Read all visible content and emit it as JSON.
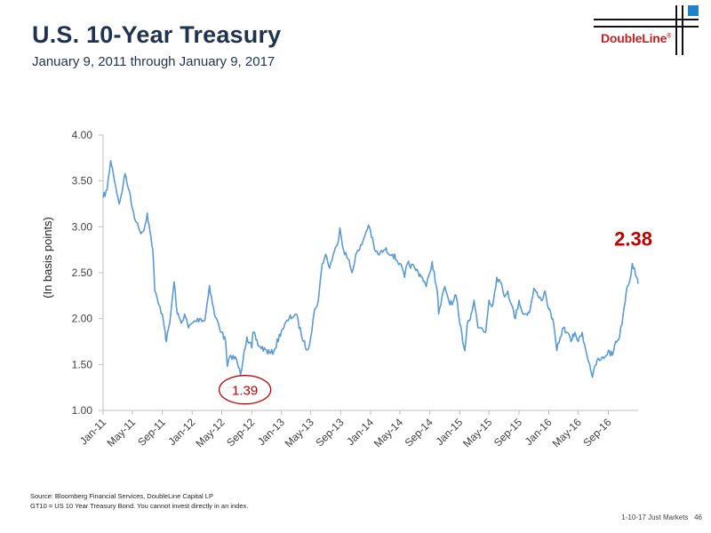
{
  "header": {
    "title": "U.S. 10-Year Treasury",
    "subtitle": "January 9, 2011 through January 9, 2017"
  },
  "logo": {
    "text": "DoubleLine",
    "mark": "®"
  },
  "footer": {
    "source_line1": "Source: Bloomberg Financial Services, DoubleLine Capital LP",
    "source_line2": "GT10 = US 10 Year Treasury Bond. You cannot invest directly in an index.",
    "slide_ref": "1-10-17 Just Markets",
    "page_number": "46"
  },
  "colors": {
    "line": "#5b9bd5",
    "title": "#1f3350",
    "annotation_red": "#c00000",
    "brand_red": "#c8201f",
    "brand_blue": "#1f82c6"
  },
  "chart_data": {
    "type": "line",
    "title": "",
    "ylabel": "(In basis points)",
    "xlabel": "",
    "ylim": [
      1.0,
      4.0
    ],
    "xlim": [
      "2011-01-09",
      "2017-01-09"
    ],
    "grid": false,
    "y_ticks": [
      "1.00",
      "1.50",
      "2.00",
      "2.50",
      "3.00",
      "3.50",
      "4.00"
    ],
    "x_ticks": [
      {
        "date": "2011-01-09",
        "label": "Jan-11"
      },
      {
        "date": "2011-05-09",
        "label": "May-11"
      },
      {
        "date": "2011-09-09",
        "label": "Sep-11"
      },
      {
        "date": "2012-01-09",
        "label": "Jan-12"
      },
      {
        "date": "2012-05-09",
        "label": "May-12"
      },
      {
        "date": "2012-09-09",
        "label": "Sep-12"
      },
      {
        "date": "2013-01-09",
        "label": "Jan-13"
      },
      {
        "date": "2013-05-09",
        "label": "May-13"
      },
      {
        "date": "2013-09-09",
        "label": "Sep-13"
      },
      {
        "date": "2014-01-09",
        "label": "Jan-14"
      },
      {
        "date": "2014-05-09",
        "label": "May-14"
      },
      {
        "date": "2014-09-09",
        "label": "Sep-14"
      },
      {
        "date": "2015-01-09",
        "label": "Jan-15"
      },
      {
        "date": "2015-05-09",
        "label": "May-15"
      },
      {
        "date": "2015-09-09",
        "label": "Sep-15"
      },
      {
        "date": "2016-01-09",
        "label": "Jan-16"
      },
      {
        "date": "2016-05-09",
        "label": "May-16"
      },
      {
        "date": "2016-09-09",
        "label": "Sep-16"
      }
    ],
    "series": [
      {
        "points": [
          [
            "2011-01-09",
            3.32
          ],
          [
            "2011-01-25",
            3.4
          ],
          [
            "2011-02-09",
            3.72
          ],
          [
            "2011-02-20",
            3.58
          ],
          [
            "2011-03-01",
            3.45
          ],
          [
            "2011-03-16",
            3.25
          ],
          [
            "2011-04-01",
            3.45
          ],
          [
            "2011-04-09",
            3.58
          ],
          [
            "2011-04-25",
            3.4
          ],
          [
            "2011-05-09",
            3.2
          ],
          [
            "2011-05-25",
            3.05
          ],
          [
            "2011-06-09",
            2.95
          ],
          [
            "2011-06-25",
            2.96
          ],
          [
            "2011-07-09",
            3.15
          ],
          [
            "2011-07-20",
            2.95
          ],
          [
            "2011-08-01",
            2.75
          ],
          [
            "2011-08-09",
            2.3
          ],
          [
            "2011-08-25",
            2.15
          ],
          [
            "2011-09-09",
            2.05
          ],
          [
            "2011-09-20",
            1.86
          ],
          [
            "2011-09-25",
            1.75
          ],
          [
            "2011-10-09",
            1.95
          ],
          [
            "2011-10-27",
            2.4
          ],
          [
            "2011-11-09",
            2.05
          ],
          [
            "2011-11-25",
            1.95
          ],
          [
            "2011-12-09",
            2.05
          ],
          [
            "2011-12-25",
            1.9
          ],
          [
            "2012-01-09",
            1.95
          ],
          [
            "2012-02-09",
            2.0
          ],
          [
            "2012-03-01",
            1.98
          ],
          [
            "2012-03-20",
            2.36
          ],
          [
            "2012-04-09",
            2.05
          ],
          [
            "2012-05-09",
            1.85
          ],
          [
            "2012-05-25",
            1.75
          ],
          [
            "2012-06-01",
            1.48
          ],
          [
            "2012-06-15",
            1.6
          ],
          [
            "2012-07-09",
            1.55
          ],
          [
            "2012-07-25",
            1.39
          ],
          [
            "2012-08-09",
            1.65
          ],
          [
            "2012-08-20",
            1.8
          ],
          [
            "2012-09-09",
            1.68
          ],
          [
            "2012-09-14",
            1.85
          ],
          [
            "2012-10-09",
            1.7
          ],
          [
            "2012-11-09",
            1.65
          ],
          [
            "2012-11-25",
            1.62
          ],
          [
            "2012-12-09",
            1.65
          ],
          [
            "2013-01-09",
            1.87
          ],
          [
            "2013-02-09",
            2.0
          ],
          [
            "2013-03-09",
            2.05
          ],
          [
            "2013-04-09",
            1.75
          ],
          [
            "2013-04-25",
            1.66
          ],
          [
            "2013-05-09",
            1.8
          ],
          [
            "2013-05-25",
            2.1
          ],
          [
            "2013-06-09",
            2.2
          ],
          [
            "2013-06-25",
            2.6
          ],
          [
            "2013-07-09",
            2.7
          ],
          [
            "2013-07-25",
            2.55
          ],
          [
            "2013-08-09",
            2.7
          ],
          [
            "2013-08-25",
            2.8
          ],
          [
            "2013-09-05",
            2.99
          ],
          [
            "2013-09-20",
            2.75
          ],
          [
            "2013-10-09",
            2.65
          ],
          [
            "2013-10-25",
            2.5
          ],
          [
            "2013-11-09",
            2.7
          ],
          [
            "2013-11-25",
            2.75
          ],
          [
            "2013-12-09",
            2.85
          ],
          [
            "2013-12-31",
            3.02
          ],
          [
            "2014-01-09",
            2.95
          ],
          [
            "2014-01-25",
            2.75
          ],
          [
            "2014-02-09",
            2.7
          ],
          [
            "2014-03-09",
            2.75
          ],
          [
            "2014-04-09",
            2.7
          ],
          [
            "2014-05-09",
            2.6
          ],
          [
            "2014-05-28",
            2.45
          ],
          [
            "2014-06-09",
            2.6
          ],
          [
            "2014-07-09",
            2.55
          ],
          [
            "2014-08-09",
            2.45
          ],
          [
            "2014-08-25",
            2.35
          ],
          [
            "2014-09-09",
            2.5
          ],
          [
            "2014-09-18",
            2.62
          ],
          [
            "2014-10-09",
            2.3
          ],
          [
            "2014-10-15",
            2.05
          ],
          [
            "2014-11-09",
            2.35
          ],
          [
            "2014-11-25",
            2.2
          ],
          [
            "2014-12-09",
            2.15
          ],
          [
            "2014-12-25",
            2.25
          ],
          [
            "2015-01-09",
            1.95
          ],
          [
            "2015-01-30",
            1.65
          ],
          [
            "2015-02-09",
            1.95
          ],
          [
            "2015-02-25",
            2.05
          ],
          [
            "2015-03-09",
            2.2
          ],
          [
            "2015-03-25",
            1.9
          ],
          [
            "2015-04-09",
            1.9
          ],
          [
            "2015-04-25",
            1.85
          ],
          [
            "2015-05-09",
            2.2
          ],
          [
            "2015-05-25",
            2.15
          ],
          [
            "2015-06-10",
            2.45
          ],
          [
            "2015-06-25",
            2.4
          ],
          [
            "2015-07-09",
            2.25
          ],
          [
            "2015-07-25",
            2.3
          ],
          [
            "2015-08-09",
            2.15
          ],
          [
            "2015-08-25",
            2.0
          ],
          [
            "2015-09-09",
            2.2
          ],
          [
            "2015-09-25",
            2.05
          ],
          [
            "2015-10-09",
            2.05
          ],
          [
            "2015-10-25",
            2.1
          ],
          [
            "2015-11-09",
            2.33
          ],
          [
            "2015-11-25",
            2.25
          ],
          [
            "2015-12-09",
            2.2
          ],
          [
            "2015-12-25",
            2.3
          ],
          [
            "2016-01-09",
            2.1
          ],
          [
            "2016-01-25",
            2.0
          ],
          [
            "2016-02-11",
            1.65
          ],
          [
            "2016-02-25",
            1.8
          ],
          [
            "2016-03-09",
            1.9
          ],
          [
            "2016-03-25",
            1.85
          ],
          [
            "2016-04-09",
            1.75
          ],
          [
            "2016-04-25",
            1.85
          ],
          [
            "2016-05-09",
            1.75
          ],
          [
            "2016-05-25",
            1.85
          ],
          [
            "2016-06-09",
            1.65
          ],
          [
            "2016-06-25",
            1.5
          ],
          [
            "2016-07-06",
            1.36
          ],
          [
            "2016-07-25",
            1.55
          ],
          [
            "2016-08-09",
            1.55
          ],
          [
            "2016-08-25",
            1.58
          ],
          [
            "2016-09-09",
            1.65
          ],
          [
            "2016-09-25",
            1.6
          ],
          [
            "2016-10-09",
            1.75
          ],
          [
            "2016-10-25",
            1.8
          ],
          [
            "2016-11-09",
            2.05
          ],
          [
            "2016-11-25",
            2.35
          ],
          [
            "2016-12-09",
            2.45
          ],
          [
            "2016-12-16",
            2.6
          ],
          [
            "2016-12-25",
            2.55
          ],
          [
            "2017-01-03",
            2.45
          ],
          [
            "2017-01-09",
            2.38
          ]
        ]
      }
    ],
    "annotations": [
      {
        "label": "1.39",
        "date": "2012-07-25",
        "value": 1.39,
        "circled": true,
        "color": "#c00000"
      },
      {
        "label": "2.38",
        "date": "2017-01-09",
        "value": 2.38,
        "circled": false,
        "bold": true,
        "color": "#c00000"
      }
    ]
  }
}
